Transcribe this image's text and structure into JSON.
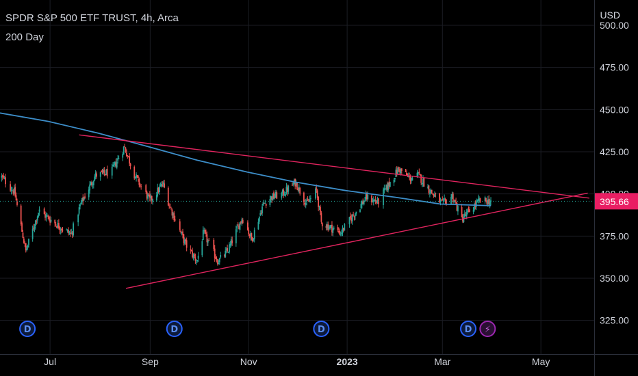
{
  "header": {
    "title": "SPDR S&P 500 ETF TRUST, 4h, Arca",
    "indicator": "200 Day",
    "currency": "USD"
  },
  "colors": {
    "background": "#000000",
    "up": "#26a69a",
    "down": "#ef5350",
    "ma": "#3d8ec9",
    "trendline": "#e0245e",
    "price_badge": "#e91e63",
    "marker_d": "#2962ff",
    "marker_flash": "#9c27b0",
    "grid": "#1b1d24",
    "axis_text": "#d1d4dc"
  },
  "axis": {
    "x_ticks": [
      {
        "label": "Jul",
        "date": "2022-07-01"
      },
      {
        "label": "Sep",
        "date": "2022-09-01"
      },
      {
        "label": "Nov",
        "date": "2022-11-01"
      },
      {
        "label": "2023",
        "date": "2023-01-01",
        "bold": true
      },
      {
        "label": "Mar",
        "date": "2023-03-01"
      },
      {
        "label": "May",
        "date": "2023-05-01"
      }
    ],
    "y_ticks": [
      {
        "label": "500.00",
        "value": 500
      },
      {
        "label": "475.00",
        "value": 475
      },
      {
        "label": "450.00",
        "value": 450
      },
      {
        "label": "425.00",
        "value": 425
      },
      {
        "label": "400.00",
        "value": 400
      },
      {
        "label": "375.00",
        "value": 375
      },
      {
        "label": "350.00",
        "value": 350
      },
      {
        "label": "325.00",
        "value": 325
      }
    ]
  },
  "events": [
    {
      "date": "2022-06-17",
      "label": "D",
      "type": "dividend"
    },
    {
      "date": "2022-09-16",
      "label": "D",
      "type": "dividend"
    },
    {
      "date": "2022-12-16",
      "label": "D",
      "type": "dividend"
    },
    {
      "date": "2023-03-17",
      "label": "D",
      "type": "dividend"
    },
    {
      "date": "2023-03-29",
      "label": "⚡",
      "type": "earnings"
    }
  ],
  "chart_data": {
    "type": "candlestick",
    "ticker": "SPDR S&P 500 ETF TRUST",
    "interval": "4h",
    "exchange": "Arca",
    "x_range": [
      "2022-05-31",
      "2023-06-03"
    ],
    "ylim": [
      305,
      515
    ],
    "last_price": {
      "value": 395.66,
      "label": "395.66"
    },
    "price_path": [
      [
        "2022-06-01",
        410
      ],
      [
        "2022-06-09",
        401
      ],
      [
        "2022-06-16",
        366
      ],
      [
        "2022-06-24",
        390
      ],
      [
        "2022-07-05",
        382
      ],
      [
        "2022-07-14",
        376
      ],
      [
        "2022-07-20",
        394
      ],
      [
        "2022-07-29",
        411
      ],
      [
        "2022-08-08",
        413
      ],
      [
        "2022-08-16",
        428
      ],
      [
        "2022-08-22",
        412
      ],
      [
        "2022-08-26",
        405
      ],
      [
        "2022-09-01",
        396
      ],
      [
        "2022-09-09",
        406
      ],
      [
        "2022-09-13",
        393
      ],
      [
        "2022-09-23",
        370
      ],
      [
        "2022-09-30",
        360
      ],
      [
        "2022-10-04",
        377
      ],
      [
        "2022-10-13",
        360
      ],
      [
        "2022-10-19",
        366
      ],
      [
        "2022-10-28",
        386
      ],
      [
        "2022-11-03",
        373
      ],
      [
        "2022-11-10",
        394
      ],
      [
        "2022-11-15",
        398
      ],
      [
        "2022-11-22",
        400
      ],
      [
        "2022-11-30",
        407
      ],
      [
        "2022-12-07",
        394
      ],
      [
        "2022-12-13",
        402
      ],
      [
        "2022-12-16",
        383
      ],
      [
        "2022-12-28",
        377
      ],
      [
        "2023-01-06",
        389
      ],
      [
        "2023-01-13",
        398
      ],
      [
        "2023-01-20",
        395
      ],
      [
        "2023-01-27",
        406
      ],
      [
        "2023-02-02",
        415
      ],
      [
        "2023-02-09",
        409
      ],
      [
        "2023-02-14",
        411
      ],
      [
        "2023-02-23",
        400
      ],
      [
        "2023-03-01",
        394
      ],
      [
        "2023-03-07",
        399
      ],
      [
        "2023-03-13",
        385
      ],
      [
        "2023-03-17",
        389
      ],
      [
        "2023-03-24",
        396
      ],
      [
        "2023-03-31",
        395.66
      ]
    ],
    "moving_average": {
      "name": "200 Day",
      "points": [
        [
          "2022-05-31",
          448
        ],
        [
          "2022-06-30",
          443
        ],
        [
          "2022-07-31",
          436
        ],
        [
          "2022-08-31",
          428
        ],
        [
          "2022-09-30",
          420
        ],
        [
          "2022-10-31",
          413
        ],
        [
          "2022-11-30",
          407
        ],
        [
          "2022-12-31",
          402
        ],
        [
          "2023-01-31",
          398
        ],
        [
          "2023-02-28",
          394
        ],
        [
          "2023-03-31",
          393
        ]
      ]
    },
    "trendlines": [
      {
        "name": "upper",
        "points": [
          [
            "2022-07-19",
            435
          ],
          [
            "2023-05-31",
            397.5
          ]
        ]
      },
      {
        "name": "lower",
        "points": [
          [
            "2022-08-17",
            344
          ],
          [
            "2023-05-30",
            400.5
          ]
        ]
      }
    ]
  }
}
